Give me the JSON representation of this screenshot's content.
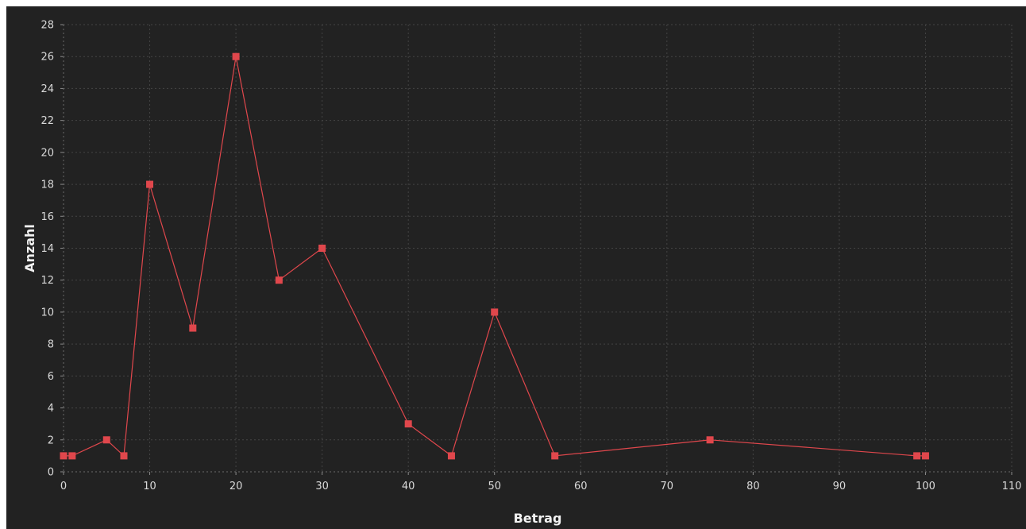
{
  "chart_data": {
    "type": "line",
    "title": "",
    "xlabel": "Betrag",
    "ylabel": "Anzahl",
    "xlim": [
      0,
      110
    ],
    "ylim": [
      0,
      28
    ],
    "x_ticks": [
      0,
      10,
      20,
      30,
      40,
      50,
      60,
      70,
      80,
      90,
      100,
      110
    ],
    "y_ticks": [
      0,
      2,
      4,
      6,
      8,
      10,
      12,
      14,
      16,
      18,
      20,
      22,
      24,
      26,
      28
    ],
    "grid": true,
    "legend": "none",
    "marker": "square",
    "series": [
      {
        "color": "#e0474c",
        "points": [
          {
            "x": 0,
            "y": 1
          },
          {
            "x": 1,
            "y": 1
          },
          {
            "x": 5,
            "y": 2
          },
          {
            "x": 7,
            "y": 1
          },
          {
            "x": 10,
            "y": 18
          },
          {
            "x": 15,
            "y": 9
          },
          {
            "x": 20,
            "y": 26
          },
          {
            "x": 25,
            "y": 12
          },
          {
            "x": 30,
            "y": 14
          },
          {
            "x": 40,
            "y": 3
          },
          {
            "x": 45,
            "y": 1
          },
          {
            "x": 50,
            "y": 10
          },
          {
            "x": 57,
            "y": 1
          },
          {
            "x": 75,
            "y": 2
          },
          {
            "x": 99,
            "y": 1
          },
          {
            "x": 100,
            "y": 1
          }
        ]
      }
    ]
  },
  "colors": {
    "background": "#222222",
    "grid": "#444444",
    "axis_text": "#d9d9d9",
    "title_text": "#f2f2f2"
  }
}
